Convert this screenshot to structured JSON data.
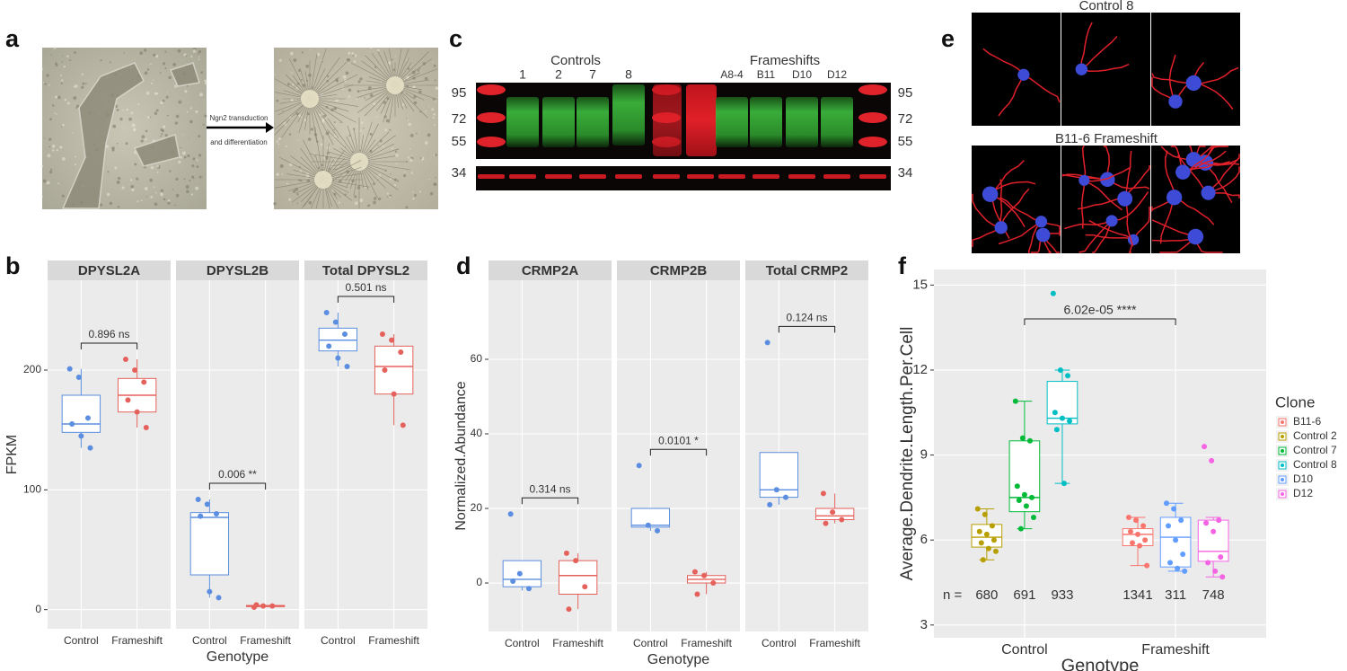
{
  "panel_labels": [
    "a",
    "b",
    "c",
    "d",
    "e",
    "f"
  ],
  "panel_a": {
    "arrow_text": [
      "Ngn2 transduction",
      "and differentiation"
    ]
  },
  "panel_c": {
    "groups": [
      "Controls",
      "Frameshifts"
    ],
    "lanes": [
      "1",
      "2",
      "7",
      "8",
      "A8-4",
      "B11",
      "D10",
      "D12"
    ],
    "markers": [
      "95",
      "72",
      "55",
      "34"
    ]
  },
  "panel_e": {
    "rows": [
      "Control 8",
      "B11-6 Frameshift"
    ]
  },
  "chart_data": [
    {
      "type": "box",
      "ylabel": "FPKM",
      "xlabel": "Genotype",
      "ylim": [
        -16,
        275
      ],
      "yticks": [
        0,
        100,
        200
      ],
      "colors": [
        "#5b8ee0",
        "#e5625c"
      ],
      "facets": [
        {
          "title": "DPYSL2A",
          "categories": [
            "Control",
            "Frameshift"
          ],
          "annotation": "0.896 ns",
          "boxes": [
            {
              "min": 135,
              "q1": 148,
              "median": 155,
              "q3": 179,
              "max": 201,
              "points": [
                201,
                194,
                160,
                155,
                145,
                135
              ]
            },
            {
              "min": 152,
              "q1": 165,
              "median": 179,
              "q3": 193,
              "max": 209,
              "points": [
                209,
                200,
                190,
                175,
                165,
                152
              ]
            }
          ]
        },
        {
          "title": "DPYSL2B",
          "categories": [
            "Control",
            "Frameshift"
          ],
          "annotation": "0.006 **",
          "boxes": [
            {
              "min": 10,
              "q1": 29,
              "median": 77,
              "q3": 81,
              "max": 92,
              "points": [
                92,
                88,
                80,
                78,
                15,
                10
              ]
            },
            {
              "min": 2,
              "q1": 2.5,
              "median": 3,
              "q3": 3.5,
              "max": 4,
              "points": [
                2,
                3,
                3,
                4
              ]
            }
          ]
        },
        {
          "title": "Total DPYSL2",
          "categories": [
            "Control",
            "Frameshift"
          ],
          "annotation": "0.501 ns",
          "boxes": [
            {
              "min": 203,
              "q1": 216,
              "median": 225,
              "q3": 235,
              "max": 248,
              "points": [
                248,
                240,
                230,
                220,
                210,
                203
              ]
            },
            {
              "min": 154,
              "q1": 180,
              "median": 203,
              "q3": 220,
              "max": 230,
              "points": [
                230,
                225,
                215,
                200,
                180,
                154
              ]
            }
          ]
        }
      ]
    },
    {
      "type": "box",
      "ylabel": "Normalized.Abundance",
      "xlabel": "Genotype",
      "ylim": [
        -13,
        81.2
      ],
      "yticks": [
        0,
        20,
        40,
        60
      ],
      "colors": [
        "#5b8ee0",
        "#e5625c"
      ],
      "facets": [
        {
          "title": "CRMP2A",
          "categories": [
            "Control",
            "Frameshift"
          ],
          "annotation": "0.314 ns",
          "boxes": [
            {
              "min": -2,
              "q1": -1,
              "median": 1,
              "q3": 6,
              "max": 6,
              "points": [
                18.5,
                2.5,
                -1.5,
                0.5
              ]
            },
            {
              "min": -7,
              "q1": -3,
              "median": 2,
              "q3": 6,
              "max": 8,
              "points": [
                8,
                6,
                -1,
                -7
              ]
            }
          ]
        },
        {
          "title": "CRMP2B",
          "categories": [
            "Control",
            "Frameshift"
          ],
          "annotation": "0.0101 *",
          "boxes": [
            {
              "min": 14,
              "q1": 15,
              "median": 15.5,
              "q3": 20,
              "max": 20,
              "points": [
                31.5,
                15.5,
                14
              ]
            },
            {
              "min": -3,
              "q1": 0,
              "median": 1,
              "q3": 2,
              "max": 3,
              "points": [
                3,
                2,
                0,
                -3
              ]
            }
          ]
        },
        {
          "title": "Total CRMP2",
          "categories": [
            "Control",
            "Frameshift"
          ],
          "annotation": "0.124 ns",
          "boxes": [
            {
              "min": 21,
              "q1": 23,
              "median": 25,
              "q3": 35,
              "max": 35,
              "points": [
                64.5,
                25,
                23,
                21
              ]
            },
            {
              "min": 16,
              "q1": 17,
              "median": 18,
              "q3": 20,
              "max": 24,
              "points": [
                24,
                19,
                17,
                16
              ]
            }
          ]
        }
      ]
    },
    {
      "type": "dodged-box",
      "ylabel": "Average.Dendrite.Length.Per.Cell",
      "xlabel": "Genotype",
      "ylim": [
        2.55,
        15.55
      ],
      "yticks": [
        3,
        6,
        9,
        12,
        15
      ],
      "annotation": "6.02e-05 ****",
      "n_label": "n =",
      "legend_title": "Clone",
      "groups": [
        {
          "name": "Control",
          "series": [
            {
              "name": "Control 2",
              "color": "#b79f00",
              "n": 680,
              "min": 5.3,
              "q1": 5.75,
              "median": 6.1,
              "q3": 6.55,
              "max": 7.1,
              "points": [
                7.1,
                6.9,
                6.5,
                6.3,
                6.2,
                6.0,
                5.9,
                5.7,
                5.6,
                5.3
              ]
            },
            {
              "name": "Control 7",
              "color": "#00ba38",
              "n": 691,
              "min": 6.4,
              "q1": 7.0,
              "median": 7.5,
              "q3": 9.5,
              "max": 10.9,
              "points": [
                10.9,
                9.6,
                9.5,
                7.9,
                7.6,
                7.5,
                7.4,
                7.2,
                6.8,
                6.4
              ]
            },
            {
              "name": "Control 8",
              "color": "#00bfc4",
              "n": 933,
              "min": 8.0,
              "q1": 10.1,
              "median": 10.3,
              "q3": 11.6,
              "max": 12.0,
              "points": [
                14.7,
                12.0,
                11.8,
                10.5,
                10.3,
                10.2,
                9.9,
                8.0
              ]
            }
          ]
        },
        {
          "name": "Frameshift",
          "series": [
            {
              "name": "B11-6",
              "color": "#f8766d",
              "n": 1341,
              "min": 5.1,
              "q1": 5.8,
              "median": 6.2,
              "q3": 6.4,
              "max": 6.8,
              "points": [
                6.8,
                6.7,
                6.5,
                6.3,
                6.2,
                6.0,
                5.9,
                5.8,
                5.1
              ]
            },
            {
              "name": "D10",
              "color": "#619cff",
              "n": 311,
              "min": 4.9,
              "q1": 5.05,
              "median": 6.1,
              "q3": 6.8,
              "max": 7.3,
              "points": [
                7.3,
                7.1,
                6.7,
                6.5,
                6.0,
                5.5,
                5.2,
                5.0,
                4.9
              ]
            },
            {
              "name": "D12",
              "color": "#f564e3",
              "n": 748,
              "min": 4.7,
              "q1": 5.25,
              "median": 5.6,
              "q3": 6.7,
              "max": 6.8,
              "points": [
                9.3,
                8.8,
                6.7,
                6.6,
                6.3,
                5.4,
                5.2,
                4.9,
                4.7
              ]
            }
          ]
        }
      ]
    }
  ]
}
